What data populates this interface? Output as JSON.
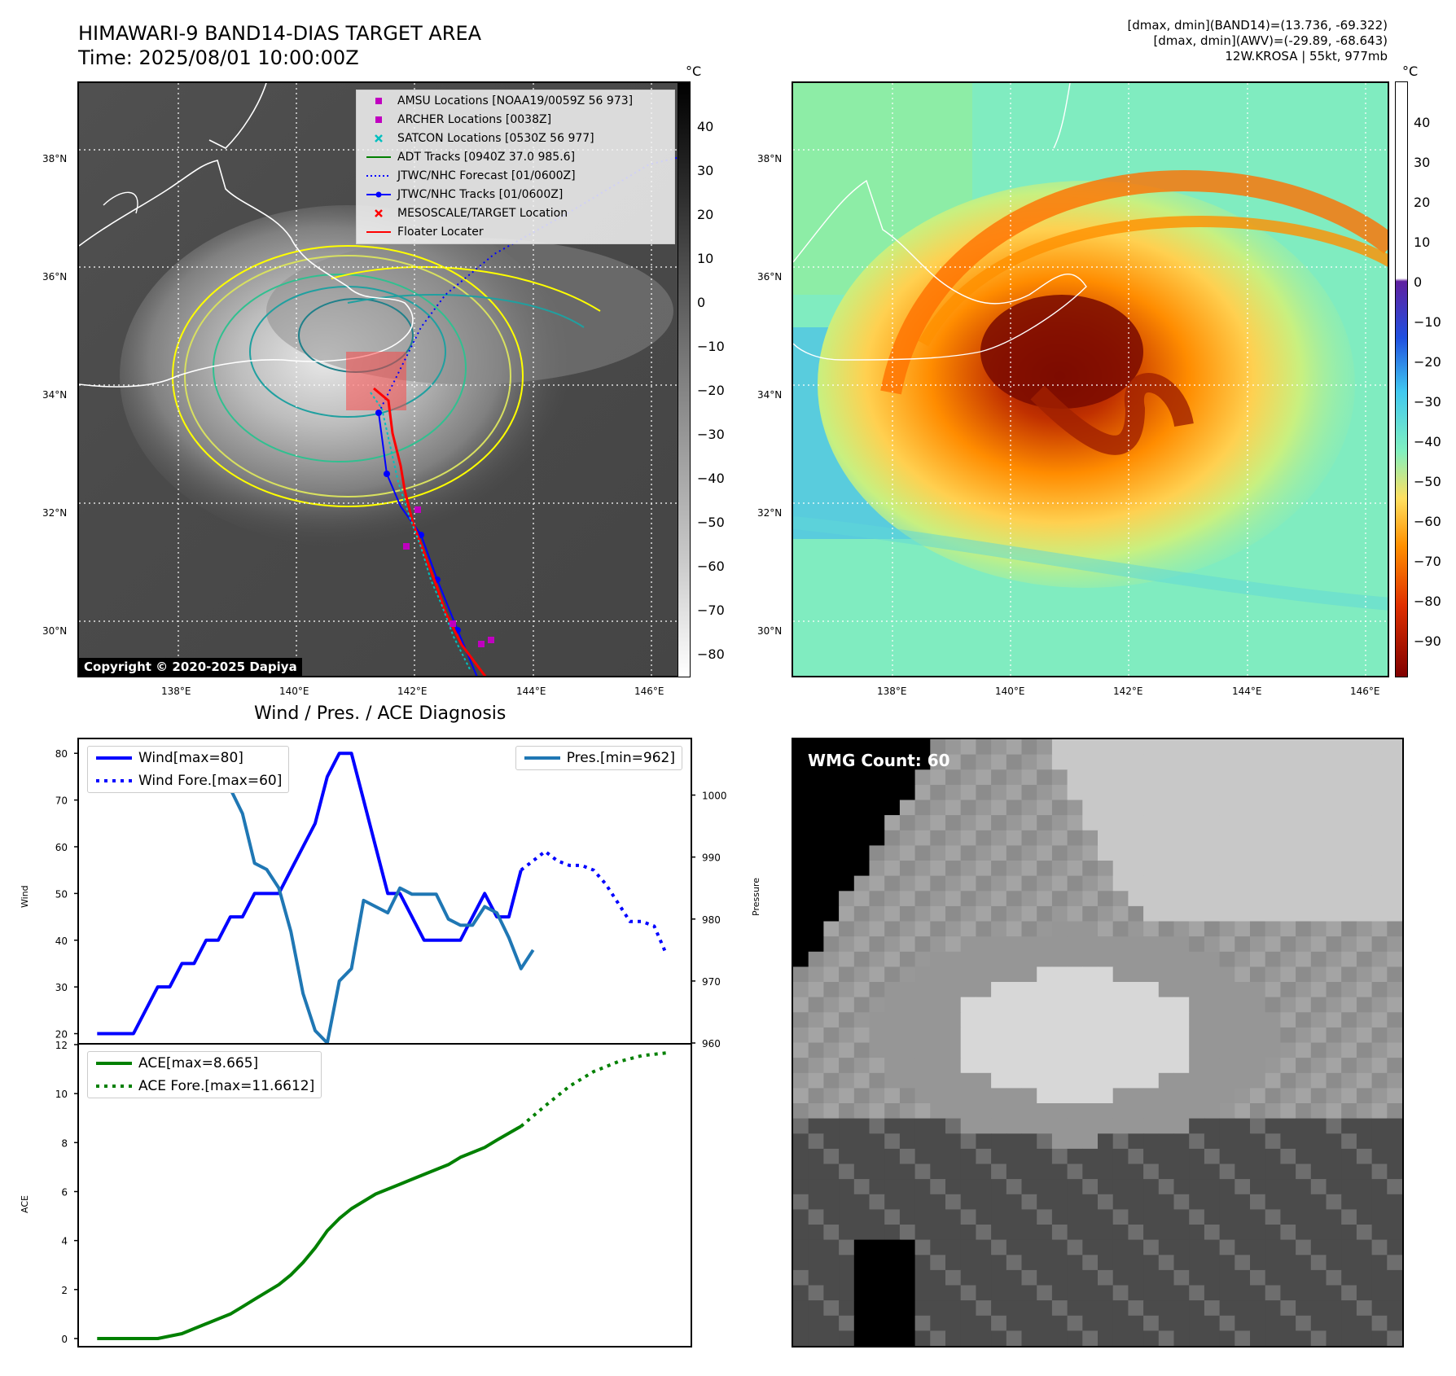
{
  "header": {
    "title_line1": "HIMAWARI-9 BAND14-DIAS TARGET AREA",
    "title_line2": "Time: 2025/08/01 10:00:00Z",
    "info_line1": "[dmax, dmin](BAND14)=(13.736, -69.322)",
    "info_line2": "[dmax, dmin](AWV)=(-29.89, -68.643)",
    "info_line3": "12W.KROSA | 55kt, 977mb"
  },
  "map": {
    "lat_ticks": [
      "38°N",
      "36°N",
      "34°N",
      "32°N",
      "30°N"
    ],
    "lon_ticks": [
      "138°E",
      "140°E",
      "142°E",
      "144°E",
      "146°E"
    ],
    "copyright": "Copyright © 2020-2025 Dapiya",
    "legend": [
      {
        "label": "AMSU Locations [NOAA19/0059Z 56 973]",
        "marker": "square",
        "color": "#c000c0"
      },
      {
        "label": "ARCHER Locations [0038Z]",
        "marker": "square",
        "color": "#c000c0"
      },
      {
        "label": "SATCON Locations [0530Z 56 977]",
        "marker": "x",
        "color": "#00bfbf"
      },
      {
        "label": "ADT Tracks [0940Z 37.0 985.6]",
        "marker": "line",
        "color": "#008000"
      },
      {
        "label": "JTWC/NHC Forecast [01/0600Z]",
        "marker": "dotted",
        "color": "#0000ff"
      },
      {
        "label": "JTWC/NHC Tracks [01/0600Z]",
        "marker": "line-dot",
        "color": "#0000ff"
      },
      {
        "label": "MESOSCALE/TARGET Location",
        "marker": "x",
        "color": "#ff0000"
      },
      {
        "label": "Floater Locater",
        "marker": "line",
        "color": "#ff0000"
      }
    ]
  },
  "colorbar_ir": {
    "unit": "°C",
    "ticks": [
      "40",
      "30",
      "20",
      "10",
      "0",
      "−10",
      "−20",
      "−30",
      "−40",
      "−50",
      "−60",
      "−70",
      "−80"
    ]
  },
  "colorbar_awv": {
    "unit": "°C",
    "ticks": [
      "40",
      "30",
      "20",
      "10",
      "0",
      "−10",
      "−20",
      "−30",
      "−40",
      "−50",
      "−60",
      "−70",
      "−80",
      "−90"
    ]
  },
  "diag": {
    "title": "Wind / Pres. / ACE Diagnosis",
    "wind_ylabel": "Wind",
    "pres_ylabel": "Pressure",
    "ace_ylabel": "ACE",
    "wmg_label": "WMG Count: 60"
  },
  "chart_data": [
    {
      "type": "line",
      "title": "Wind / Pres. / ACE Diagnosis",
      "ylabel": "Wind",
      "y2label": "Pressure",
      "ylim": [
        18,
        83
      ],
      "y2lim": [
        960,
        1009
      ],
      "yticks": [
        "20",
        "30",
        "40",
        "50",
        "60",
        "70",
        "80"
      ],
      "y2ticks": [
        "960",
        "970",
        "980",
        "990",
        "1000"
      ],
      "series": [
        {
          "name": "Wind[max=80]",
          "axis": "left",
          "color": "#0000ff",
          "style": "solid",
          "x": [
            0,
            3,
            5,
            6,
            7,
            8,
            9,
            10,
            11,
            12,
            13,
            15,
            16,
            17,
            18,
            19,
            20,
            21,
            22,
            23,
            24,
            25,
            27,
            28,
            29,
            30,
            31,
            32,
            33,
            34,
            35
          ],
          "y": [
            20,
            20,
            30,
            30,
            35,
            35,
            40,
            40,
            45,
            45,
            50,
            50,
            55,
            60,
            65,
            75,
            80,
            80,
            70,
            60,
            50,
            50,
            40,
            40,
            40,
            40,
            45,
            50,
            45,
            45,
            55
          ]
        },
        {
          "name": "Wind Fore.[max=60]",
          "axis": "left",
          "color": "#0000ff",
          "style": "dotted",
          "x": [
            35,
            36,
            37,
            38,
            39,
            40,
            41,
            42,
            43,
            44,
            45,
            46,
            47
          ],
          "y": [
            55,
            57,
            59,
            57,
            56,
            56,
            55,
            52,
            48,
            44,
            44,
            43,
            37
          ]
        },
        {
          "name": "Pres.[min=962]",
          "axis": "right",
          "color": "#1f77b4",
          "style": "solid",
          "x": [
            0,
            3,
            4,
            5,
            6,
            7,
            8,
            9,
            10,
            11,
            12,
            13,
            14,
            15,
            16,
            17,
            18,
            19,
            20,
            21,
            22,
            23,
            24,
            25,
            26,
            27,
            28,
            29,
            30,
            31,
            32,
            33,
            34,
            35,
            36
          ],
          "y": [
            1007,
            1007,
            1005,
            1005,
            1004,
            1004,
            1002,
            1002,
            1001,
            1001,
            997,
            989,
            988,
            985,
            978,
            968,
            962,
            960,
            970,
            972,
            983,
            982,
            981,
            985,
            984,
            984,
            984,
            980,
            979,
            979,
            982,
            981,
            977,
            972,
            975
          ]
        }
      ]
    },
    {
      "type": "line",
      "ylabel": "ACE",
      "ylim": [
        -0.3,
        12
      ],
      "yticks": [
        "0",
        "2",
        "4",
        "6",
        "8",
        "10",
        "12"
      ],
      "series": [
        {
          "name": "ACE[max=8.665]",
          "color": "#008000",
          "style": "solid",
          "x": [
            0,
            2,
            3,
            4,
            5,
            6,
            7,
            8,
            9,
            10,
            11,
            12,
            13,
            14,
            15,
            16,
            17,
            18,
            19,
            20,
            21,
            22,
            23,
            24,
            25,
            26,
            27,
            28,
            29,
            30,
            31,
            32,
            33,
            35
          ],
          "y": [
            0,
            0,
            0,
            0,
            0,
            0.1,
            0.2,
            0.4,
            0.6,
            0.8,
            1.0,
            1.3,
            1.6,
            1.9,
            2.2,
            2.6,
            3.1,
            3.7,
            4.4,
            4.9,
            5.3,
            5.6,
            5.9,
            6.1,
            6.3,
            6.5,
            6.7,
            6.9,
            7.1,
            7.4,
            7.6,
            7.8,
            8.1,
            8.665
          ]
        },
        {
          "name": "ACE Fore.[max=11.6612]",
          "color": "#008000",
          "style": "dotted",
          "x": [
            35,
            37,
            39,
            41,
            43,
            45,
            47
          ],
          "y": [
            8.665,
            9.5,
            10.3,
            10.9,
            11.3,
            11.55,
            11.6612
          ]
        }
      ]
    }
  ]
}
